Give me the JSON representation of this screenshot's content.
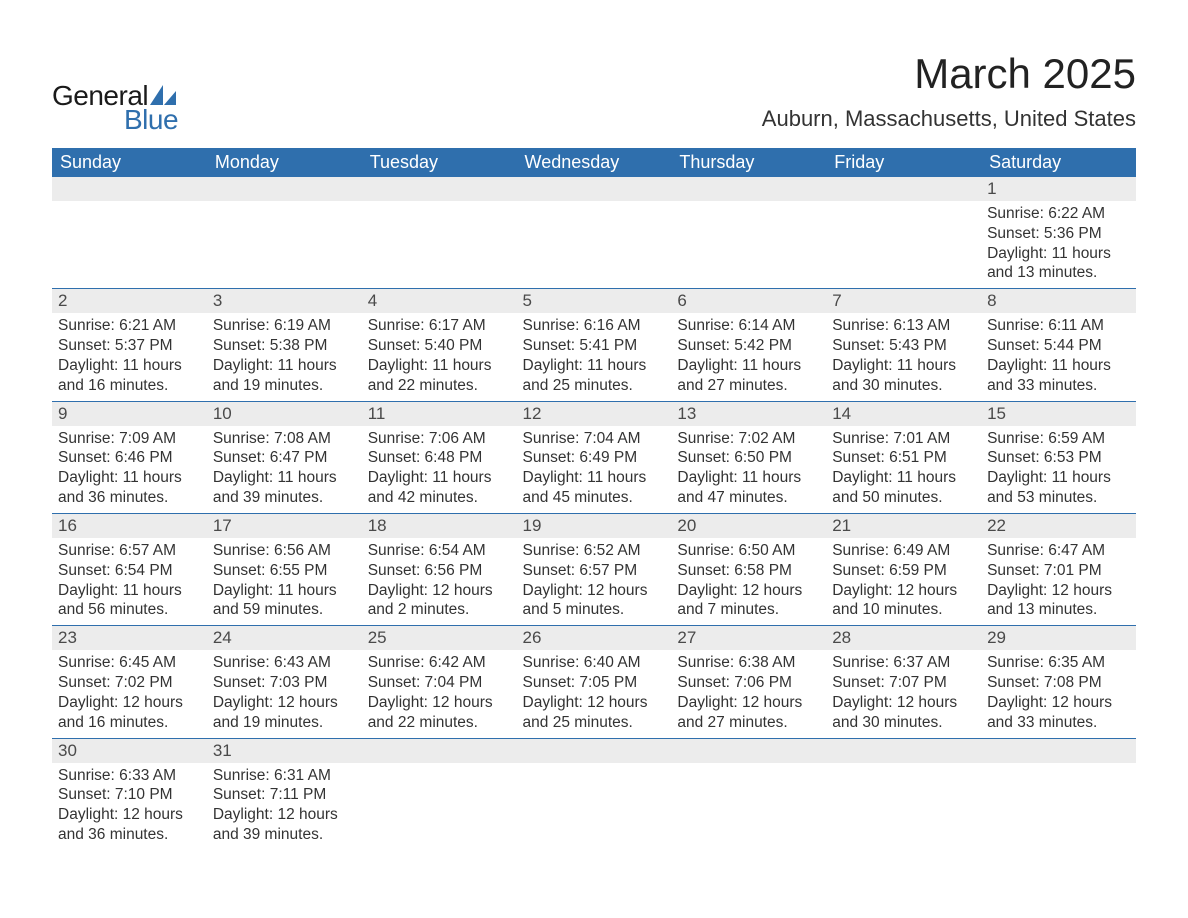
{
  "brand": {
    "general": "General",
    "blue": "Blue"
  },
  "header": {
    "month_title": "March 2025",
    "location": "Auburn, Massachusetts, United States"
  },
  "colors": {
    "header_bg": "#2f6fad",
    "header_text": "#ffffff",
    "daynum_bg": "#ececec",
    "row_border": "#2f6fad",
    "body_text": "#333333",
    "page_bg": "#ffffff",
    "logo_blue": "#2f6fad"
  },
  "day_labels": [
    "Sunday",
    "Monday",
    "Tuesday",
    "Wednesday",
    "Thursday",
    "Friday",
    "Saturday"
  ],
  "field_labels": {
    "sunrise": "Sunrise:",
    "sunset": "Sunset:",
    "daylight": "Daylight:"
  },
  "weeks": [
    [
      null,
      null,
      null,
      null,
      null,
      null,
      {
        "n": "1",
        "sunrise": "6:22 AM",
        "sunset": "5:36 PM",
        "daylight": "11 hours and 13 minutes."
      }
    ],
    [
      {
        "n": "2",
        "sunrise": "6:21 AM",
        "sunset": "5:37 PM",
        "daylight": "11 hours and 16 minutes."
      },
      {
        "n": "3",
        "sunrise": "6:19 AM",
        "sunset": "5:38 PM",
        "daylight": "11 hours and 19 minutes."
      },
      {
        "n": "4",
        "sunrise": "6:17 AM",
        "sunset": "5:40 PM",
        "daylight": "11 hours and 22 minutes."
      },
      {
        "n": "5",
        "sunrise": "6:16 AM",
        "sunset": "5:41 PM",
        "daylight": "11 hours and 25 minutes."
      },
      {
        "n": "6",
        "sunrise": "6:14 AM",
        "sunset": "5:42 PM",
        "daylight": "11 hours and 27 minutes."
      },
      {
        "n": "7",
        "sunrise": "6:13 AM",
        "sunset": "5:43 PM",
        "daylight": "11 hours and 30 minutes."
      },
      {
        "n": "8",
        "sunrise": "6:11 AM",
        "sunset": "5:44 PM",
        "daylight": "11 hours and 33 minutes."
      }
    ],
    [
      {
        "n": "9",
        "sunrise": "7:09 AM",
        "sunset": "6:46 PM",
        "daylight": "11 hours and 36 minutes."
      },
      {
        "n": "10",
        "sunrise": "7:08 AM",
        "sunset": "6:47 PM",
        "daylight": "11 hours and 39 minutes."
      },
      {
        "n": "11",
        "sunrise": "7:06 AM",
        "sunset": "6:48 PM",
        "daylight": "11 hours and 42 minutes."
      },
      {
        "n": "12",
        "sunrise": "7:04 AM",
        "sunset": "6:49 PM",
        "daylight": "11 hours and 45 minutes."
      },
      {
        "n": "13",
        "sunrise": "7:02 AM",
        "sunset": "6:50 PM",
        "daylight": "11 hours and 47 minutes."
      },
      {
        "n": "14",
        "sunrise": "7:01 AM",
        "sunset": "6:51 PM",
        "daylight": "11 hours and 50 minutes."
      },
      {
        "n": "15",
        "sunrise": "6:59 AM",
        "sunset": "6:53 PM",
        "daylight": "11 hours and 53 minutes."
      }
    ],
    [
      {
        "n": "16",
        "sunrise": "6:57 AM",
        "sunset": "6:54 PM",
        "daylight": "11 hours and 56 minutes."
      },
      {
        "n": "17",
        "sunrise": "6:56 AM",
        "sunset": "6:55 PM",
        "daylight": "11 hours and 59 minutes."
      },
      {
        "n": "18",
        "sunrise": "6:54 AM",
        "sunset": "6:56 PM",
        "daylight": "12 hours and 2 minutes."
      },
      {
        "n": "19",
        "sunrise": "6:52 AM",
        "sunset": "6:57 PM",
        "daylight": "12 hours and 5 minutes."
      },
      {
        "n": "20",
        "sunrise": "6:50 AM",
        "sunset": "6:58 PM",
        "daylight": "12 hours and 7 minutes."
      },
      {
        "n": "21",
        "sunrise": "6:49 AM",
        "sunset": "6:59 PM",
        "daylight": "12 hours and 10 minutes."
      },
      {
        "n": "22",
        "sunrise": "6:47 AM",
        "sunset": "7:01 PM",
        "daylight": "12 hours and 13 minutes."
      }
    ],
    [
      {
        "n": "23",
        "sunrise": "6:45 AM",
        "sunset": "7:02 PM",
        "daylight": "12 hours and 16 minutes."
      },
      {
        "n": "24",
        "sunrise": "6:43 AM",
        "sunset": "7:03 PM",
        "daylight": "12 hours and 19 minutes."
      },
      {
        "n": "25",
        "sunrise": "6:42 AM",
        "sunset": "7:04 PM",
        "daylight": "12 hours and 22 minutes."
      },
      {
        "n": "26",
        "sunrise": "6:40 AM",
        "sunset": "7:05 PM",
        "daylight": "12 hours and 25 minutes."
      },
      {
        "n": "27",
        "sunrise": "6:38 AM",
        "sunset": "7:06 PM",
        "daylight": "12 hours and 27 minutes."
      },
      {
        "n": "28",
        "sunrise": "6:37 AM",
        "sunset": "7:07 PM",
        "daylight": "12 hours and 30 minutes."
      },
      {
        "n": "29",
        "sunrise": "6:35 AM",
        "sunset": "7:08 PM",
        "daylight": "12 hours and 33 minutes."
      }
    ],
    [
      {
        "n": "30",
        "sunrise": "6:33 AM",
        "sunset": "7:10 PM",
        "daylight": "12 hours and 36 minutes."
      },
      {
        "n": "31",
        "sunrise": "6:31 AM",
        "sunset": "7:11 PM",
        "daylight": "12 hours and 39 minutes."
      },
      null,
      null,
      null,
      null,
      null
    ]
  ]
}
